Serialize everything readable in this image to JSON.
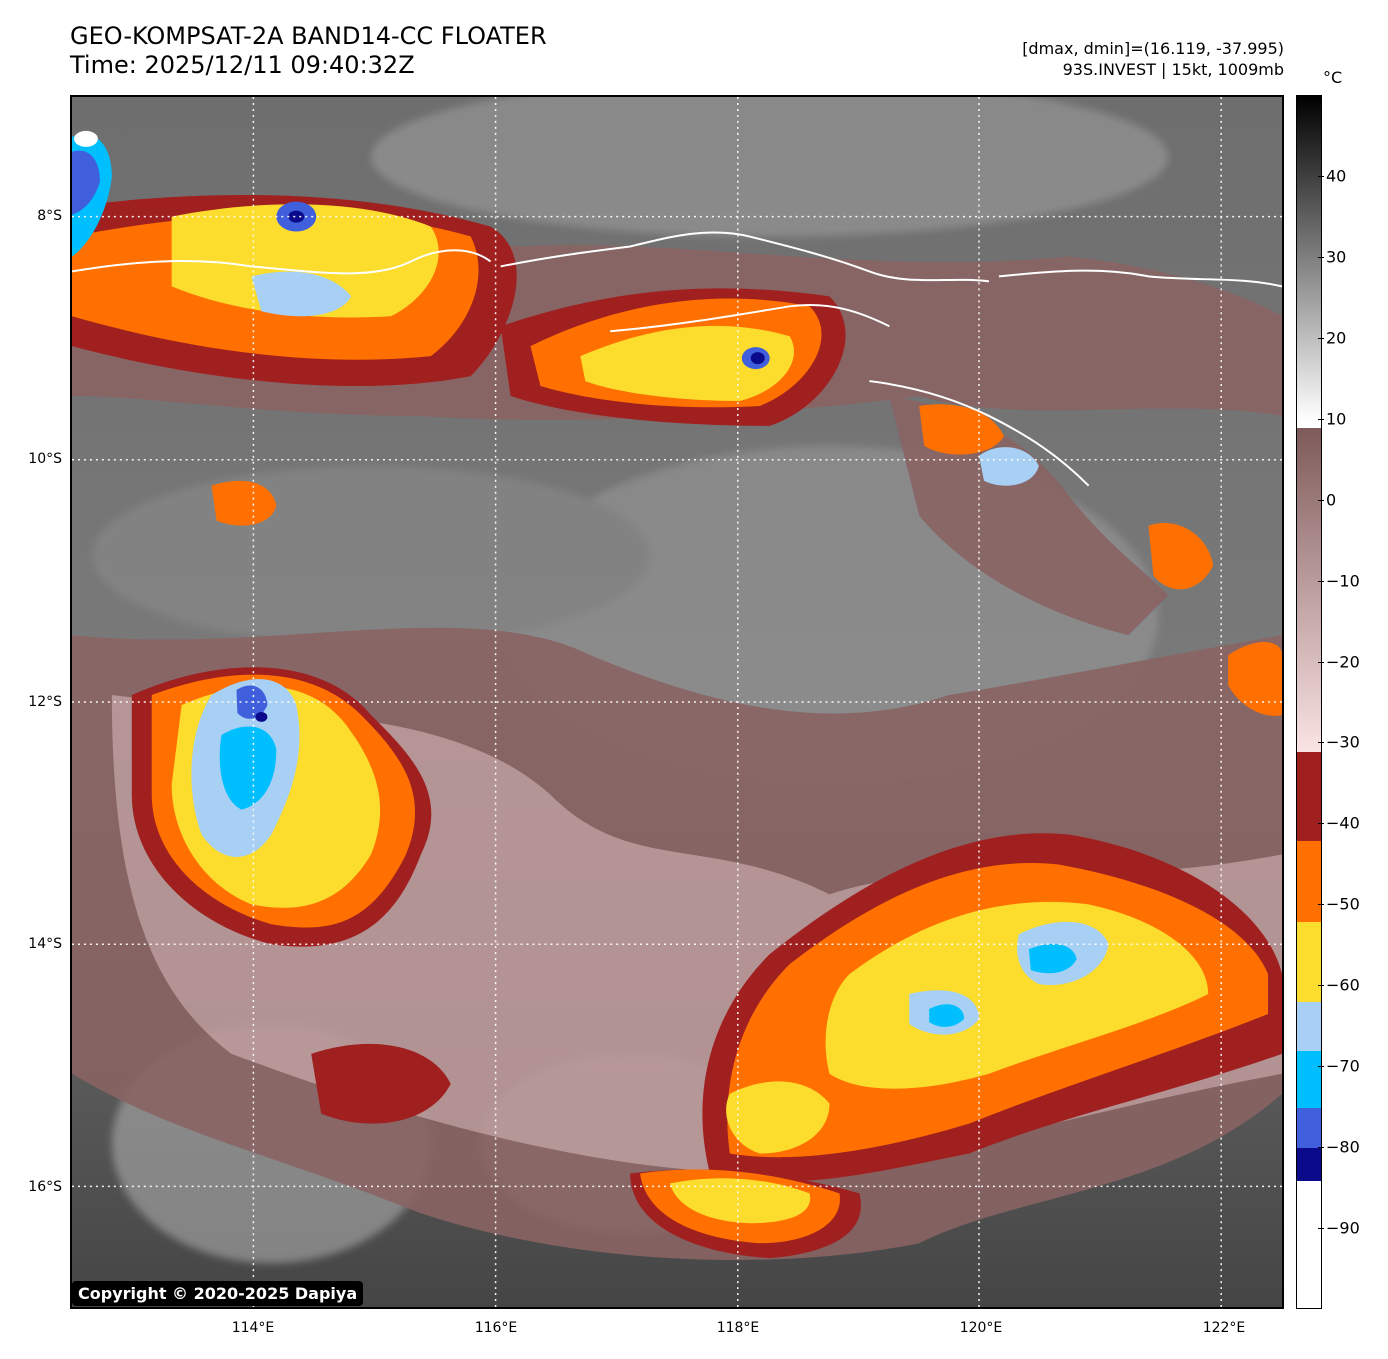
{
  "header": {
    "title_line1": "GEO-KOMPSAT-2A BAND14-CC FLOATER",
    "title_line2": "Time: 2025/12/11 09:40:32Z",
    "meta_line1": "[dmax, dmin]=(16.119, -37.995)",
    "meta_line2": "93S.INVEST | 15kt, 1009mb"
  },
  "map": {
    "lon_labels": [
      "114°E",
      "116°E",
      "118°E",
      "120°E",
      "122°E"
    ],
    "lat_labels": [
      "8°S",
      "10°S",
      "12°S",
      "14°S",
      "16°S"
    ],
    "lon_values": [
      114,
      116,
      118,
      120,
      122
    ],
    "lat_values": [
      -8,
      -10,
      -12,
      -14,
      -16
    ],
    "lon_range": [
      112.5,
      122.5
    ],
    "lat_range": [
      -17,
      -7
    ],
    "gridlines": "dotted white",
    "colors": {
      "cold_top_white": "#ffffff",
      "deep_blue": "#0a0a8a",
      "royal_blue": "#3f5fdc",
      "cyan": "#00bfff",
      "light_blue": "#a8d0f4",
      "yellow": "#fcdc2c",
      "orange": "#ff7000",
      "dark_red": "#a02020",
      "pink": "#f4d4d4",
      "brown": "#8a6464"
    }
  },
  "copyright": "Copyright © 2020-2025 Dapiya",
  "colorbar": {
    "unit": "°C",
    "tick_labels": [
      "40",
      "30",
      "20",
      "10",
      "0",
      "−10",
      "−20",
      "−30",
      "−40",
      "−50",
      "−60",
      "−70",
      "−80",
      "−90"
    ],
    "tick_values": [
      40,
      30,
      20,
      10,
      0,
      -10,
      -20,
      -30,
      -40,
      -50,
      -60,
      -70,
      -80,
      -90
    ],
    "range": [
      -100,
      50
    ],
    "segments": [
      {
        "from": 50,
        "to": 10,
        "color_top": "#000000",
        "color_bottom": "#ffffff"
      },
      {
        "from": 9,
        "to": -31,
        "color_top": "#7e5a5a",
        "color_bottom": "#fbe4e4"
      },
      {
        "from": -31,
        "to": -42,
        "color": "#a02020"
      },
      {
        "from": -42,
        "to": -52,
        "color": "#ff7000"
      },
      {
        "from": -52,
        "to": -62,
        "color": "#fcdc2c"
      },
      {
        "from": -62,
        "to": -68,
        "color": "#a8d0f4"
      },
      {
        "from": -68,
        "to": -75,
        "color": "#00bfff"
      },
      {
        "from": -75,
        "to": -80,
        "color": "#3f5fdc"
      },
      {
        "from": -80,
        "to": -84,
        "color": "#0a0a8a"
      },
      {
        "from": -84,
        "to": -100,
        "color": "#ffffff"
      }
    ]
  }
}
